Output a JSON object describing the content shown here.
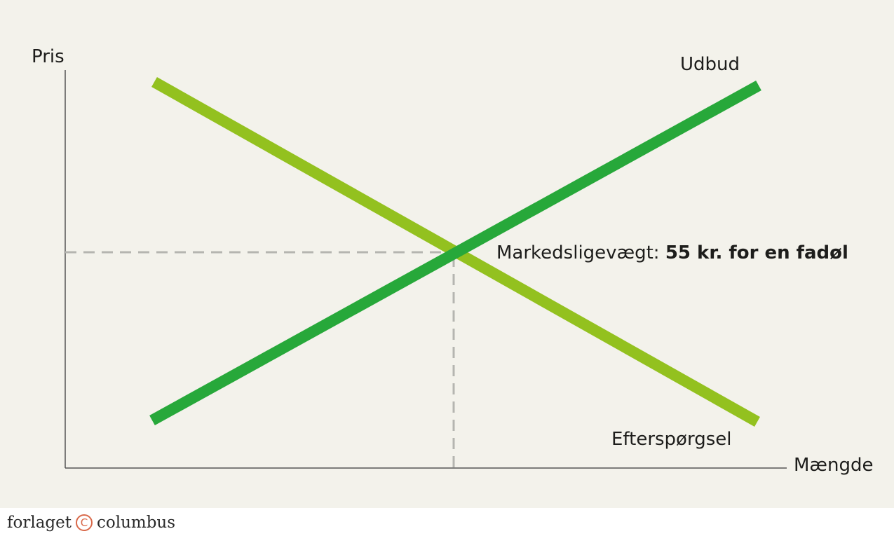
{
  "axes": {
    "y_label": "Pris",
    "x_label": "Mængde"
  },
  "supply": {
    "label": "Udbud",
    "color": "#27a83a"
  },
  "demand": {
    "label": "Efterspørgsel",
    "color": "#93c11f"
  },
  "equilibrium": {
    "prefix": "Markedsligevægt: ",
    "value": "55 kr. for en fadøl"
  },
  "footer": {
    "left": "forlaget",
    "mark": "C",
    "right": "columbus"
  },
  "colors": {
    "background": "#f3f2eb",
    "guide": "#b5b5b0",
    "axis": "#555555",
    "logo_accent": "#d9694a"
  }
}
